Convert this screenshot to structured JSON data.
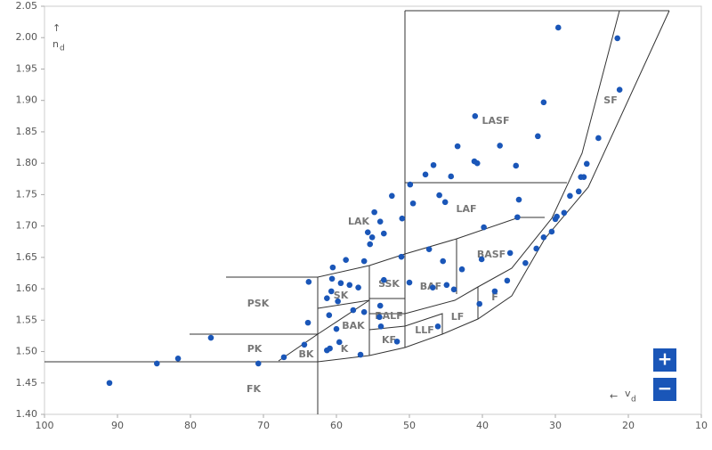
{
  "chart_data": {
    "type": "scatter",
    "ylabel": {
      "arrow": "↑",
      "symbol": "n",
      "subscript": "d"
    },
    "xlabel": {
      "arrow": "←",
      "symbol": "v",
      "subscript": "d"
    },
    "color": "#1a56b8",
    "xlim": [
      100,
      10
    ],
    "ylim": [
      1.4,
      2.05
    ],
    "xticks": [
      100,
      90,
      80,
      70,
      60,
      50,
      40,
      30,
      20,
      10
    ],
    "yticks": [
      {
        "value": 1.4,
        "label": "1.40"
      },
      {
        "value": 1.45,
        "label": "1.45"
      },
      {
        "value": 1.5,
        "label": "1.50"
      },
      {
        "value": 1.55,
        "label": "1.55"
      },
      {
        "value": 1.6,
        "label": "1.60"
      },
      {
        "value": 1.65,
        "label": "1.65"
      },
      {
        "value": 1.7,
        "label": "1.70"
      },
      {
        "value": 1.75,
        "label": "1.75"
      },
      {
        "value": 1.8,
        "label": "1.80"
      },
      {
        "value": 1.85,
        "label": "1.85"
      },
      {
        "value": 1.9,
        "label": "1.90"
      },
      {
        "value": 1.95,
        "label": "1.95"
      },
      {
        "value": 2.0,
        "label": "2.00"
      },
      {
        "value": 2.05,
        "label": "2.05"
      }
    ],
    "regions": [
      "LASF",
      "LAF",
      "LAK",
      "BASF",
      "PSK",
      "SK",
      "SSK",
      "BAF",
      "BALF",
      "BAK",
      "LF",
      "F",
      "LLF",
      "KF",
      "K",
      "PK",
      "BK",
      "FK",
      "SF"
    ],
    "x": [
      91.1,
      84.6,
      81.7,
      77.2,
      70.7,
      67.2,
      64.4,
      63.8,
      63.9,
      60.5,
      60.6,
      61.3,
      60.7,
      59.8,
      61.0,
      59.4,
      58.7,
      58.2,
      57.0,
      57.7,
      56.2,
      56.2,
      60.9,
      61.3,
      60.0,
      59.6,
      56.7,
      55.7,
      55.1,
      54.8,
      54.0,
      53.5,
      55.4,
      52.4,
      51.0,
      54.0,
      54.1,
      53.9,
      53.5,
      51.1,
      49.9,
      49.5,
      50.0,
      51.7,
      47.8,
      46.7,
      45.9,
      45.1,
      47.3,
      46.8,
      45.4,
      44.9,
      43.9,
      44.3,
      43.4,
      42.8,
      46.1,
      40.4,
      41.0,
      41.1,
      40.7,
      39.8,
      40.1,
      38.3,
      37.6,
      36.6,
      36.2,
      35.4,
      35.0,
      35.2,
      34.1,
      32.6,
      31.6,
      32.4,
      31.6,
      30.5,
      30.0,
      29.8,
      29.6,
      28.8,
      28.0,
      26.8,
      26.5,
      26.1,
      25.7,
      24.1,
      21.5,
      21.2
    ],
    "y": [
      1.45,
      1.481,
      1.489,
      1.522,
      1.481,
      1.491,
      1.511,
      1.611,
      1.546,
      1.634,
      1.616,
      1.585,
      1.596,
      1.58,
      1.558,
      1.609,
      1.646,
      1.606,
      1.602,
      1.566,
      1.563,
      1.644,
      1.505,
      1.502,
      1.536,
      1.515,
      1.495,
      1.69,
      1.682,
      1.722,
      1.707,
      1.688,
      1.671,
      1.748,
      1.712,
      1.573,
      1.555,
      1.54,
      1.614,
      1.651,
      1.766,
      1.736,
      1.61,
      1.516,
      1.782,
      1.797,
      1.749,
      1.738,
      1.663,
      1.602,
      1.644,
      1.606,
      1.599,
      1.779,
      1.827,
      1.631,
      1.54,
      1.576,
      1.875,
      1.803,
      1.8,
      1.698,
      1.647,
      1.596,
      1.828,
      1.613,
      1.657,
      1.796,
      1.742,
      1.714,
      1.641,
      1.664,
      1.897,
      1.843,
      1.682,
      1.691,
      1.711,
      1.715,
      2.016,
      1.721,
      1.748,
      1.755,
      1.778,
      1.778,
      1.799,
      1.84,
      1.999,
      1.917
    ],
    "zoom": {
      "in": "+",
      "out": "−"
    }
  }
}
